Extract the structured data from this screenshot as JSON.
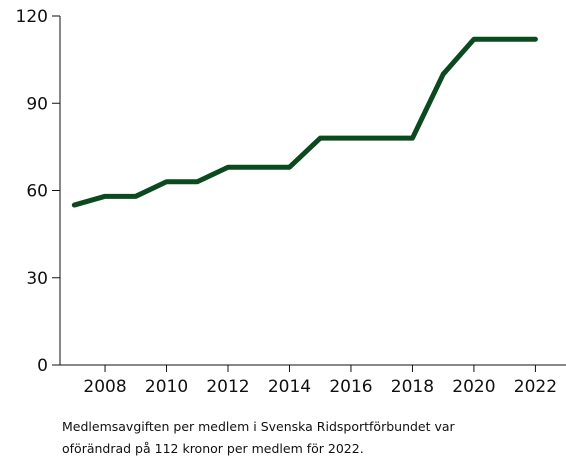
{
  "chart_data": {
    "type": "line",
    "caption_lines": [
      "Medlemsavgiften per medlem i Svenska Ridsportförbundet var",
      "oförändrad på 112 kronor per medlem för 2022."
    ],
    "x": [
      2007,
      2008,
      2009,
      2010,
      2011,
      2012,
      2013,
      2014,
      2015,
      2016,
      2017,
      2018,
      2019,
      2020,
      2021,
      2022
    ],
    "series": [
      {
        "color": "#0b4a1e",
        "values": [
          55,
          58,
          58,
          63,
          63,
          68,
          68,
          68,
          78,
          78,
          78,
          78,
          100,
          112,
          112,
          112
        ]
      }
    ],
    "xlim": [
      2006.6,
      2022.8
    ],
    "xticks": [
      2008,
      2010,
      2012,
      2014,
      2016,
      2018,
      2020,
      2022
    ],
    "ylim": [
      0,
      120
    ],
    "yticks": [
      0,
      30,
      60,
      90,
      120
    ]
  }
}
